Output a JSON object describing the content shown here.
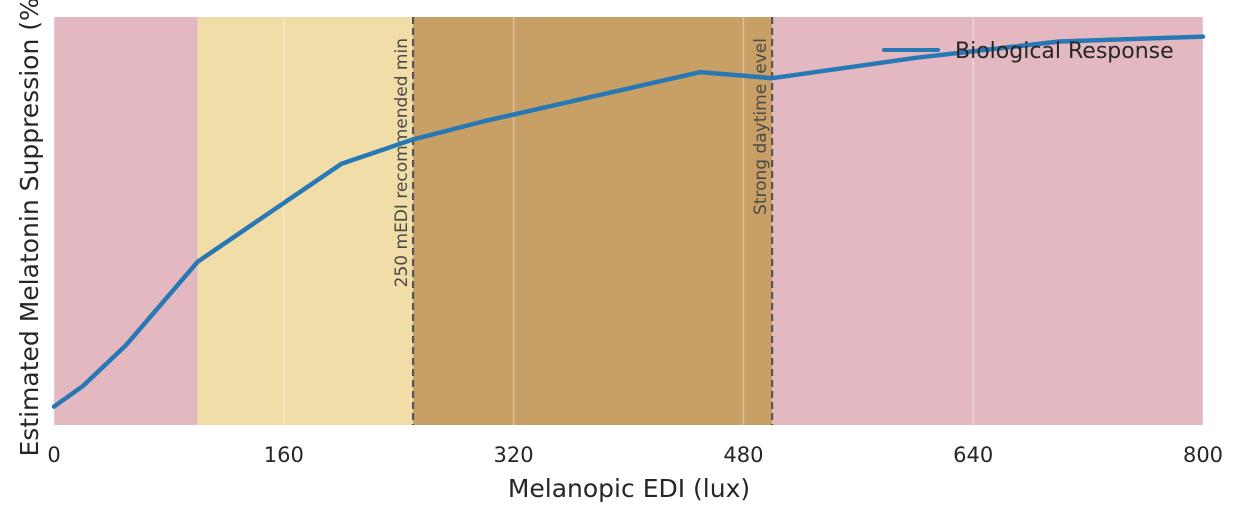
{
  "chart_data": {
    "type": "line",
    "xlabel": "Melanopic EDI (lux)",
    "ylabel": "Estimated Melatonin Suppression (%)",
    "xlim": [
      0,
      800
    ],
    "ylim": [
      0,
      100
    ],
    "xticks": [
      0,
      160,
      320,
      480,
      640,
      800
    ],
    "yticks_shown": false,
    "grid": true,
    "legend_position": "top-right",
    "bands": [
      {
        "x0": 0,
        "x1": 100,
        "color": "#e3b8c0"
      },
      {
        "x0": 100,
        "x1": 250,
        "color": "#f0dda8"
      },
      {
        "x0": 250,
        "x1": 500,
        "color": "#c8a066"
      },
      {
        "x0": 500,
        "x1": 800,
        "color": "#e3b8c0"
      }
    ],
    "reference_lines": [
      {
        "x": 250,
        "label": "250 mEDI recommended min"
      },
      {
        "x": 500,
        "label": "Strong daytime level"
      }
    ],
    "series": [
      {
        "name": "Biological Response",
        "color": "#2878b5",
        "x": [
          0,
          20,
          50,
          100,
          150,
          200,
          250,
          300,
          350,
          400,
          450,
          500,
          600,
          700,
          800
        ],
        "y": [
          4.5,
          9.5,
          19.5,
          40,
          52,
          64,
          70,
          74.5,
          78.5,
          82.5,
          86.5,
          85,
          90,
          94,
          95.2
        ]
      }
    ]
  }
}
